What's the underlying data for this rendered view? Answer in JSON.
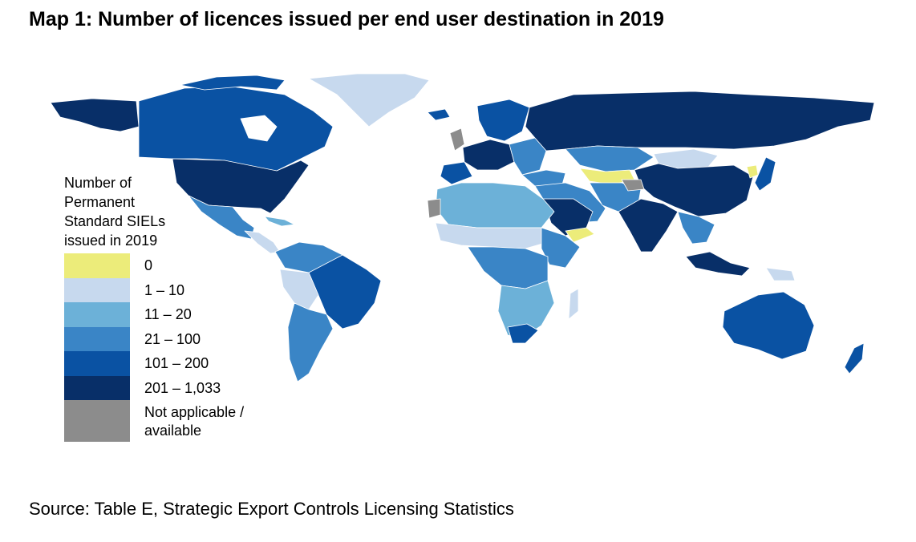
{
  "title": "Map 1: Number of licences issued per end user destination in 2019",
  "legend": {
    "title_lines": [
      "Number of",
      "Permanent",
      "Standard SIELs",
      "issued in 2019"
    ],
    "items": [
      {
        "label": "0",
        "color": "#ecec7a"
      },
      {
        "label": "1 – 10",
        "color": "#c7d9ee"
      },
      {
        "label": "11 – 20",
        "color": "#6cb1d8"
      },
      {
        "label": "21 – 100",
        "color": "#3a85c6"
      },
      {
        "label": "101 – 200",
        "color": "#0a52a3"
      },
      {
        "label": "201 – 1,033",
        "color": "#082f68"
      },
      {
        "label": "Not applicable / available",
        "color": "#8c8c8c"
      }
    ]
  },
  "source": "Source: Table E, Strategic Export Controls Licensing Statistics"
}
